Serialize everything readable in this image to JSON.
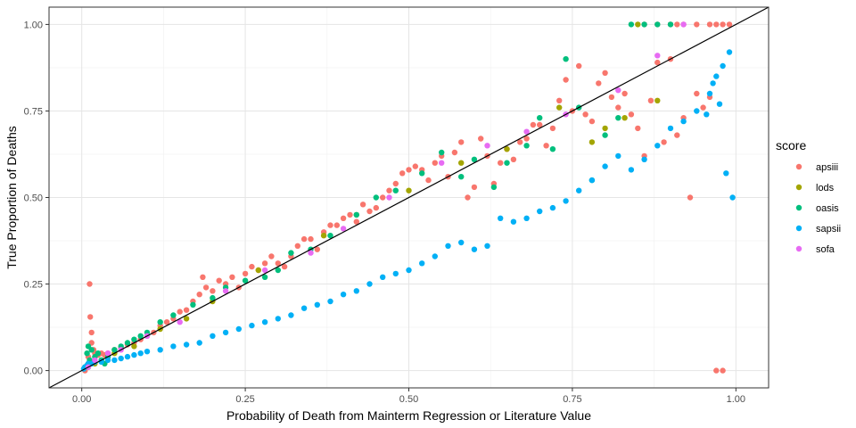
{
  "chart_data": {
    "type": "scatter",
    "xlabel": "Probability of Death from Mainterm Regression or Literature Value",
    "ylabel": "True Proportion of Deaths",
    "xlim": [
      -0.05,
      1.05
    ],
    "ylim": [
      -0.05,
      1.05
    ],
    "x_ticks": [
      0,
      0.25,
      0.5,
      0.75,
      1
    ],
    "x_tick_labels": [
      "0.00",
      "0.25",
      "0.50",
      "0.75",
      "1.00"
    ],
    "y_ticks": [
      0,
      0.25,
      0.5,
      0.75,
      1
    ],
    "y_tick_labels": [
      "0.00",
      "0.25",
      "0.50",
      "0.75",
      "1.00"
    ],
    "grid": true,
    "reference_line": {
      "from": [
        -0.05,
        -0.05
      ],
      "to": [
        1.05,
        1.05
      ],
      "color": "#000000"
    },
    "legend": {
      "title": "score",
      "position": "right"
    },
    "series": [
      {
        "name": "apsiii",
        "color": "#F8766D",
        "points": [
          [
            0.005,
            0.0
          ],
          [
            0.01,
            0.02
          ],
          [
            0.01,
            0.04
          ],
          [
            0.012,
            0.25
          ],
          [
            0.013,
            0.155
          ],
          [
            0.015,
            0.11
          ],
          [
            0.015,
            0.08
          ],
          [
            0.018,
            0.06
          ],
          [
            0.02,
            0.05
          ],
          [
            0.025,
            0.045
          ],
          [
            0.03,
            0.05
          ],
          [
            0.035,
            0.045
          ],
          [
            0.04,
            0.05
          ],
          [
            0.05,
            0.06
          ],
          [
            0.06,
            0.065
          ],
          [
            0.07,
            0.075
          ],
          [
            0.08,
            0.08
          ],
          [
            0.09,
            0.09
          ],
          [
            0.1,
            0.1
          ],
          [
            0.11,
            0.11
          ],
          [
            0.12,
            0.13
          ],
          [
            0.13,
            0.14
          ],
          [
            0.14,
            0.15
          ],
          [
            0.15,
            0.17
          ],
          [
            0.16,
            0.175
          ],
          [
            0.17,
            0.2
          ],
          [
            0.18,
            0.22
          ],
          [
            0.185,
            0.27
          ],
          [
            0.19,
            0.24
          ],
          [
            0.2,
            0.23
          ],
          [
            0.21,
            0.26
          ],
          [
            0.22,
            0.25
          ],
          [
            0.23,
            0.27
          ],
          [
            0.24,
            0.24
          ],
          [
            0.25,
            0.28
          ],
          [
            0.26,
            0.3
          ],
          [
            0.27,
            0.29
          ],
          [
            0.28,
            0.31
          ],
          [
            0.29,
            0.33
          ],
          [
            0.3,
            0.31
          ],
          [
            0.31,
            0.3
          ],
          [
            0.32,
            0.33
          ],
          [
            0.33,
            0.36
          ],
          [
            0.34,
            0.38
          ],
          [
            0.35,
            0.38
          ],
          [
            0.36,
            0.35
          ],
          [
            0.37,
            0.4
          ],
          [
            0.38,
            0.42
          ],
          [
            0.39,
            0.42
          ],
          [
            0.4,
            0.44
          ],
          [
            0.41,
            0.45
          ],
          [
            0.42,
            0.43
          ],
          [
            0.43,
            0.48
          ],
          [
            0.44,
            0.46
          ],
          [
            0.45,
            0.47
          ],
          [
            0.46,
            0.5
          ],
          [
            0.47,
            0.52
          ],
          [
            0.48,
            0.54
          ],
          [
            0.49,
            0.57
          ],
          [
            0.5,
            0.58
          ],
          [
            0.51,
            0.59
          ],
          [
            0.52,
            0.58
          ],
          [
            0.53,
            0.55
          ],
          [
            0.54,
            0.6
          ],
          [
            0.55,
            0.62
          ],
          [
            0.56,
            0.56
          ],
          [
            0.57,
            0.63
          ],
          [
            0.58,
            0.66
          ],
          [
            0.59,
            0.5
          ],
          [
            0.6,
            0.53
          ],
          [
            0.61,
            0.67
          ],
          [
            0.62,
            0.62
          ],
          [
            0.63,
            0.54
          ],
          [
            0.64,
            0.6
          ],
          [
            0.65,
            0.64
          ],
          [
            0.66,
            0.61
          ],
          [
            0.67,
            0.66
          ],
          [
            0.68,
            0.67
          ],
          [
            0.69,
            0.71
          ],
          [
            0.7,
            0.71
          ],
          [
            0.71,
            0.65
          ],
          [
            0.72,
            0.7
          ],
          [
            0.73,
            0.78
          ],
          [
            0.74,
            0.84
          ],
          [
            0.75,
            0.75
          ],
          [
            0.76,
            0.88
          ],
          [
            0.77,
            0.74
          ],
          [
            0.78,
            0.72
          ],
          [
            0.79,
            0.83
          ],
          [
            0.8,
            0.86
          ],
          [
            0.81,
            0.79
          ],
          [
            0.82,
            0.76
          ],
          [
            0.83,
            0.8
          ],
          [
            0.84,
            0.74
          ],
          [
            0.85,
            0.7
          ],
          [
            0.86,
            0.62
          ],
          [
            0.87,
            0.78
          ],
          [
            0.88,
            0.89
          ],
          [
            0.89,
            0.66
          ],
          [
            0.9,
            0.9
          ],
          [
            0.91,
            0.68
          ],
          [
            0.92,
            0.73
          ],
          [
            0.93,
            0.5
          ],
          [
            0.94,
            0.8
          ],
          [
            0.95,
            0.76
          ],
          [
            0.96,
            0.79
          ],
          [
            0.97,
            0.0
          ],
          [
            0.98,
            0.0
          ],
          [
            0.9,
            1.0
          ],
          [
            0.92,
            1.0
          ],
          [
            0.94,
            1.0
          ],
          [
            0.96,
            1.0
          ],
          [
            0.97,
            1.0
          ],
          [
            0.98,
            1.0
          ],
          [
            0.99,
            1.0
          ],
          [
            0.88,
            1.0
          ],
          [
            0.86,
            1.0
          ],
          [
            0.91,
            1.0
          ]
        ]
      },
      {
        "name": "lods",
        "color": "#A3A500",
        "points": [
          [
            0.01,
            0.01
          ],
          [
            0.02,
            0.02
          ],
          [
            0.03,
            0.03
          ],
          [
            0.05,
            0.05
          ],
          [
            0.08,
            0.07
          ],
          [
            0.12,
            0.12
          ],
          [
            0.16,
            0.15
          ],
          [
            0.2,
            0.2
          ],
          [
            0.27,
            0.29
          ],
          [
            0.37,
            0.39
          ],
          [
            0.42,
            0.45
          ],
          [
            0.5,
            0.52
          ],
          [
            0.58,
            0.6
          ],
          [
            0.65,
            0.64
          ],
          [
            0.73,
            0.76
          ],
          [
            0.78,
            0.66
          ],
          [
            0.8,
            0.7
          ],
          [
            0.83,
            0.73
          ],
          [
            0.85,
            1.0
          ],
          [
            0.88,
            0.78
          ]
        ]
      },
      {
        "name": "oasis",
        "color": "#00BF7D",
        "points": [
          [
            0.005,
            0.01
          ],
          [
            0.008,
            0.05
          ],
          [
            0.01,
            0.07
          ],
          [
            0.012,
            0.03
          ],
          [
            0.015,
            0.06
          ],
          [
            0.02,
            0.04
          ],
          [
            0.025,
            0.05
          ],
          [
            0.03,
            0.03
          ],
          [
            0.035,
            0.02
          ],
          [
            0.04,
            0.04
          ],
          [
            0.05,
            0.06
          ],
          [
            0.06,
            0.07
          ],
          [
            0.07,
            0.08
          ],
          [
            0.08,
            0.09
          ],
          [
            0.09,
            0.1
          ],
          [
            0.1,
            0.11
          ],
          [
            0.12,
            0.14
          ],
          [
            0.14,
            0.16
          ],
          [
            0.17,
            0.19
          ],
          [
            0.2,
            0.21
          ],
          [
            0.22,
            0.24
          ],
          [
            0.25,
            0.26
          ],
          [
            0.28,
            0.27
          ],
          [
            0.3,
            0.29
          ],
          [
            0.32,
            0.34
          ],
          [
            0.35,
            0.35
          ],
          [
            0.38,
            0.39
          ],
          [
            0.42,
            0.45
          ],
          [
            0.45,
            0.5
          ],
          [
            0.48,
            0.52
          ],
          [
            0.52,
            0.57
          ],
          [
            0.55,
            0.63
          ],
          [
            0.58,
            0.56
          ],
          [
            0.6,
            0.61
          ],
          [
            0.63,
            0.53
          ],
          [
            0.65,
            0.6
          ],
          [
            0.68,
            0.65
          ],
          [
            0.7,
            0.73
          ],
          [
            0.72,
            0.64
          ],
          [
            0.74,
            0.9
          ],
          [
            0.76,
            0.76
          ],
          [
            0.78,
            0.55
          ],
          [
            0.8,
            0.68
          ],
          [
            0.82,
            0.73
          ],
          [
            0.84,
            1.0
          ],
          [
            0.86,
            1.0
          ],
          [
            0.88,
            1.0
          ],
          [
            0.9,
            1.0
          ]
        ]
      },
      {
        "name": "sapsii",
        "color": "#00B0F6",
        "points": [
          [
            0.003,
            0.005
          ],
          [
            0.005,
            0.01
          ],
          [
            0.008,
            0.015
          ],
          [
            0.01,
            0.02
          ],
          [
            0.015,
            0.02
          ],
          [
            0.02,
            0.025
          ],
          [
            0.03,
            0.025
          ],
          [
            0.04,
            0.03
          ],
          [
            0.05,
            0.03
          ],
          [
            0.06,
            0.035
          ],
          [
            0.07,
            0.04
          ],
          [
            0.08,
            0.045
          ],
          [
            0.09,
            0.05
          ],
          [
            0.1,
            0.055
          ],
          [
            0.12,
            0.06
          ],
          [
            0.14,
            0.07
          ],
          [
            0.16,
            0.075
          ],
          [
            0.18,
            0.08
          ],
          [
            0.2,
            0.1
          ],
          [
            0.22,
            0.11
          ],
          [
            0.24,
            0.12
          ],
          [
            0.26,
            0.13
          ],
          [
            0.28,
            0.14
          ],
          [
            0.3,
            0.15
          ],
          [
            0.32,
            0.16
          ],
          [
            0.34,
            0.18
          ],
          [
            0.36,
            0.19
          ],
          [
            0.38,
            0.2
          ],
          [
            0.4,
            0.22
          ],
          [
            0.42,
            0.23
          ],
          [
            0.44,
            0.25
          ],
          [
            0.46,
            0.27
          ],
          [
            0.48,
            0.28
          ],
          [
            0.5,
            0.29
          ],
          [
            0.52,
            0.31
          ],
          [
            0.54,
            0.33
          ],
          [
            0.56,
            0.36
          ],
          [
            0.58,
            0.37
          ],
          [
            0.6,
            0.35
          ],
          [
            0.62,
            0.36
          ],
          [
            0.64,
            0.44
          ],
          [
            0.66,
            0.43
          ],
          [
            0.68,
            0.44
          ],
          [
            0.7,
            0.46
          ],
          [
            0.72,
            0.47
          ],
          [
            0.74,
            0.49
          ],
          [
            0.76,
            0.52
          ],
          [
            0.78,
            0.55
          ],
          [
            0.8,
            0.59
          ],
          [
            0.82,
            0.62
          ],
          [
            0.84,
            0.58
          ],
          [
            0.86,
            0.61
          ],
          [
            0.88,
            0.65
          ],
          [
            0.9,
            0.7
          ],
          [
            0.92,
            0.72
          ],
          [
            0.94,
            0.75
          ],
          [
            0.96,
            0.8
          ],
          [
            0.97,
            0.85
          ],
          [
            0.98,
            0.88
          ],
          [
            0.99,
            0.92
          ],
          [
            0.985,
            0.57
          ],
          [
            0.995,
            0.5
          ],
          [
            0.975,
            0.77
          ],
          [
            0.965,
            0.83
          ],
          [
            0.955,
            0.74
          ]
        ]
      },
      {
        "name": "sofa",
        "color": "#E76BF3",
        "points": [
          [
            0.01,
            0.01
          ],
          [
            0.02,
            0.03
          ],
          [
            0.04,
            0.05
          ],
          [
            0.06,
            0.06
          ],
          [
            0.1,
            0.1
          ],
          [
            0.15,
            0.14
          ],
          [
            0.22,
            0.23
          ],
          [
            0.28,
            0.29
          ],
          [
            0.35,
            0.34
          ],
          [
            0.4,
            0.41
          ],
          [
            0.47,
            0.5
          ],
          [
            0.55,
            0.6
          ],
          [
            0.62,
            0.65
          ],
          [
            0.68,
            0.69
          ],
          [
            0.74,
            0.74
          ],
          [
            0.82,
            0.81
          ],
          [
            0.88,
            0.91
          ],
          [
            0.92,
            1.0
          ]
        ]
      }
    ]
  }
}
